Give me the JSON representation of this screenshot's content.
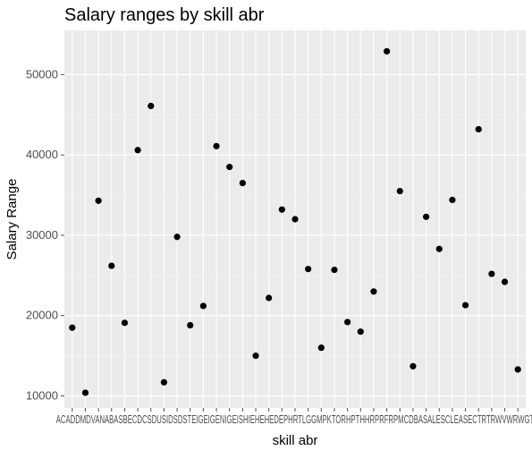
{
  "chart_data": {
    "type": "scatter",
    "title": "Salary ranges by skill abr",
    "xlabel": "skill abr",
    "ylabel": "Salary Range",
    "categories": [
      "ACCT",
      "ADM",
      "ADV",
      "ANA",
      "ASP",
      "BEC",
      "DCS",
      "DUS",
      "IDS",
      "DST",
      "ETE",
      "GEN",
      "IGE",
      "ISH",
      "EHE",
      "DEP",
      "FRT",
      "LGG",
      "IMP",
      "MKT",
      "ORH",
      "PTH",
      "HR",
      "PRF",
      "RPM",
      "PMC",
      "DBA",
      "SAL",
      "ESC",
      "LEA",
      "SEC",
      "TRT",
      "TRW",
      "VWR",
      "WGT"
    ],
    "values": [
      18500,
      10400,
      34300,
      26200,
      19100,
      40600,
      46100,
      11700,
      29800,
      18800,
      21200,
      41100,
      38500,
      36500,
      15000,
      22200,
      33200,
      32000,
      25800,
      16000,
      25700,
      19200,
      18000,
      23000,
      52900,
      35500,
      13700,
      32300,
      28300,
      34400,
      21300,
      43200,
      25200,
      24200,
      13300
    ],
    "x_tick_text": "ACADDMDVANABASBECDCSDUSIDSDSTEIGEIGENIGEISHIEHEHEDEPHRTLGGMPKTORHPTHHRPRFRPMCDBASALESCLEASECTRTRWVWRWGT",
    "yticks": [
      10000,
      20000,
      30000,
      40000,
      50000
    ],
    "ylim": [
      8500,
      55500
    ],
    "grid": true,
    "legend": "none",
    "point_color": "#000000",
    "panel_bg": "#ebebeb"
  }
}
